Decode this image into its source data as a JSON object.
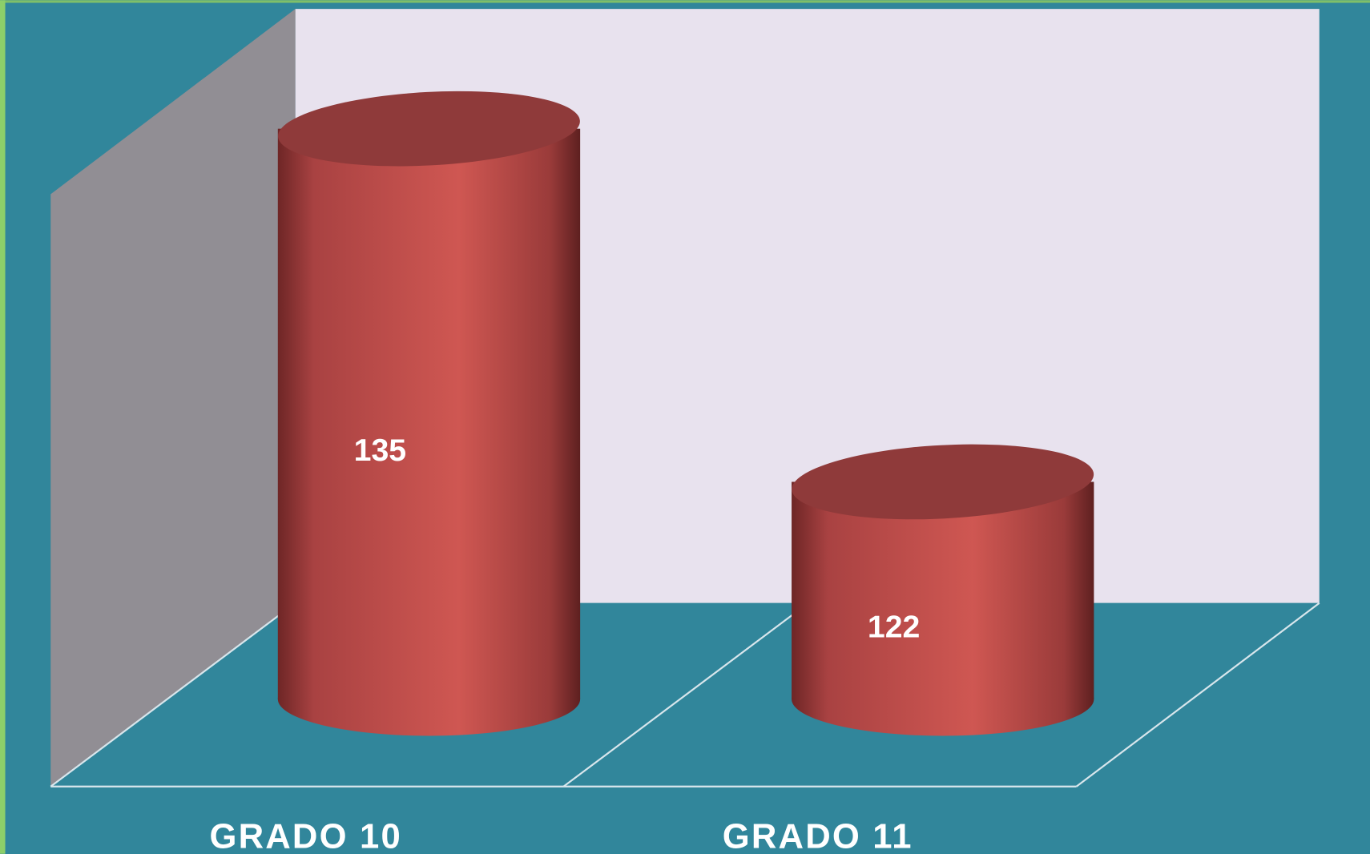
{
  "chart_data": {
    "type": "bar",
    "categories": [
      "GRADO 10",
      "GRADO 11"
    ],
    "values": [
      135,
      122
    ],
    "color": "#c0504d",
    "ylim": [
      114,
      136
    ]
  }
}
